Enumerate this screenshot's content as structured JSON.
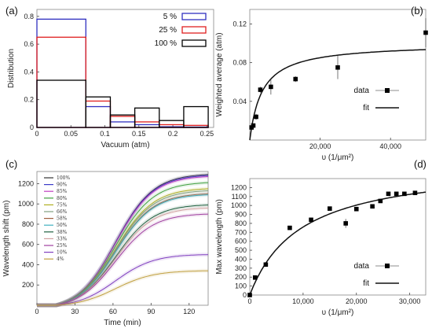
{
  "chart_data": [
    {
      "panel": "(a)",
      "type": "bar",
      "xlabel": "Vacuum (atm)",
      "ylabel": "Distribution",
      "xlim": [
        0,
        0.26
      ],
      "ylim": [
        0,
        0.85
      ],
      "xticks": [
        0,
        0.05,
        0.1,
        0.15,
        0.2,
        0.25
      ],
      "xtick_labels": [
        "0",
        "0.05",
        "0.1",
        "0.15",
        "0.2",
        "0.25"
      ],
      "yticks": [
        0,
        0.2,
        0.4,
        0.6,
        0.8
      ],
      "ytick_labels": [
        "0",
        "0.2",
        "0.4",
        "0.6",
        "0.8"
      ],
      "bin_edges": [
        0,
        0.072,
        0.108,
        0.144,
        0.18,
        0.216,
        0.252
      ],
      "series": [
        {
          "name": "5 %",
          "color": "#3030c0",
          "values": [
            0.78,
            0.15,
            0.04,
            0.02,
            0.005,
            0.003
          ]
        },
        {
          "name": "25 %",
          "color": "#e02020",
          "values": [
            0.65,
            0.19,
            0.08,
            0.04,
            0.02,
            0.015
          ]
        },
        {
          "name": "100 %",
          "color": "#000000",
          "values": [
            0.34,
            0.22,
            0.09,
            0.14,
            0.05,
            0.15
          ]
        }
      ]
    },
    {
      "panel": "(b)",
      "type": "scatter",
      "xlabel": "υ (1/μm²)",
      "ylabel": "Weighted average (atm)",
      "xlim": [
        0,
        50000
      ],
      "ylim": [
        0,
        0.135
      ],
      "xticks": [
        20000,
        40000
      ],
      "xtick_labels": [
        "20,000",
        "40,000"
      ],
      "yticks": [
        0.04,
        0.08,
        0.12
      ],
      "ytick_labels": [
        "0.04",
        "0.08",
        "0.12"
      ],
      "legend": [
        "data",
        "fit"
      ],
      "points": [
        {
          "x": 500,
          "y": 0.013,
          "err": 0.002
        },
        {
          "x": 1000,
          "y": 0.015,
          "err": 0.002
        },
        {
          "x": 1800,
          "y": 0.024,
          "err": 0.003
        },
        {
          "x": 3000,
          "y": 0.052,
          "err": 0.003
        },
        {
          "x": 6000,
          "y": 0.055,
          "err": 0.008
        },
        {
          "x": 13000,
          "y": 0.063,
          "err": 0.003
        },
        {
          "x": 25000,
          "y": 0.075,
          "err": 0.012
        },
        {
          "x": 50000,
          "y": 0.111,
          "err": 0.015
        }
      ],
      "fit": {
        "form": "a*x/(k+x)",
        "a": 0.1,
        "k": 3500
      }
    },
    {
      "panel": "(c)",
      "type": "line",
      "xlabel": "Time (min)",
      "ylabel": "Wavelength shift (pm)",
      "xlim": [
        0,
        135
      ],
      "ylim": [
        0,
        1320
      ],
      "xticks": [
        0,
        30,
        60,
        90,
        120
      ],
      "xtick_labels": [
        "0",
        "30",
        "60",
        "90",
        "120"
      ],
      "yticks": [
        200,
        400,
        600,
        800,
        1000,
        1200
      ],
      "ytick_labels": [
        "200",
        "400",
        "600",
        "800",
        "1000",
        "1200"
      ],
      "series": [
        {
          "name": "100%",
          "color": "#333333",
          "final": 1290
        },
        {
          "name": "90%",
          "color": "#3a3ac8",
          "final": 1280
        },
        {
          "name": "85%",
          "color": "#c040c0",
          "final": 1270
        },
        {
          "name": "80%",
          "color": "#40a040",
          "final": 1210
        },
        {
          "name": "75%",
          "color": "#b0b020",
          "final": 1150
        },
        {
          "name": "66%",
          "color": "#80a080",
          "final": 1130
        },
        {
          "name": "58%",
          "color": "#a06040",
          "final": 1100
        },
        {
          "name": "50%",
          "color": "#40b0c0",
          "final": 1090
        },
        {
          "name": "38%",
          "color": "#206040",
          "final": 990
        },
        {
          "name": "33%",
          "color": "#d0a0a0",
          "final": 960
        },
        {
          "name": "25%",
          "color": "#a040a0",
          "final": 900
        },
        {
          "name": "10%",
          "color": "#8040c0",
          "final": 500
        },
        {
          "name": "4%",
          "color": "#c0a040",
          "final": 340
        }
      ]
    },
    {
      "panel": "(d)",
      "type": "scatter",
      "xlabel": "υ (1/μm²)",
      "ylabel": "Max wavelength (pm)",
      "xlim": [
        0,
        33000
      ],
      "ylim": [
        0,
        1300
      ],
      "xticks": [
        0,
        10000,
        20000,
        30000
      ],
      "xtick_labels": [
        "0",
        "10,000",
        "20,000",
        "30,000"
      ],
      "yticks": [
        0,
        100,
        200,
        300,
        400,
        500,
        600,
        700,
        800,
        900,
        1000,
        1100,
        1200
      ],
      "ytick_labels": [
        "0",
        "100",
        "200",
        "300",
        "400",
        "500",
        "600",
        "700",
        "800",
        "900",
        "1000",
        "1100",
        "1200"
      ],
      "legend": [
        "data",
        "fit"
      ],
      "points": [
        {
          "x": 0,
          "y": 0,
          "err": 0
        },
        {
          "x": 1000,
          "y": 195,
          "err": 20
        },
        {
          "x": 3000,
          "y": 340,
          "err": 20
        },
        {
          "x": 7500,
          "y": 750,
          "err": 20
        },
        {
          "x": 11500,
          "y": 840,
          "err": 20
        },
        {
          "x": 15000,
          "y": 965,
          "err": 20
        },
        {
          "x": 18000,
          "y": 800,
          "err": 50
        },
        {
          "x": 20000,
          "y": 960,
          "err": 20
        },
        {
          "x": 23000,
          "y": 990,
          "err": 20
        },
        {
          "x": 24500,
          "y": 1050,
          "err": 20
        },
        {
          "x": 26000,
          "y": 1130,
          "err": 20
        },
        {
          "x": 27500,
          "y": 1130,
          "err": 20
        },
        {
          "x": 29000,
          "y": 1130,
          "err": 20
        },
        {
          "x": 31000,
          "y": 1140,
          "err": 20
        }
      ],
      "fit": {
        "form": "a*x/(k+x)",
        "a": 1480,
        "k": 9500
      }
    }
  ]
}
